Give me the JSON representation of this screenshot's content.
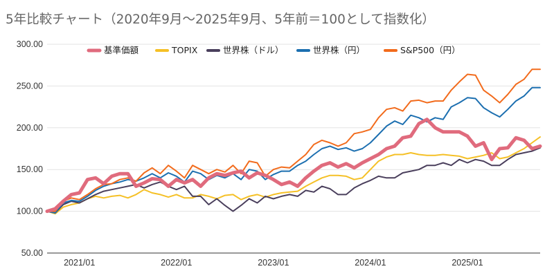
{
  "chart_data": {
    "type": "line",
    "title": "5年比較チャート（2020年9月～2025年9月、5年前＝100として指数化）",
    "xlabel": "",
    "ylabel": "",
    "ylim": [
      50,
      300
    ],
    "y_ticks": [
      "50.00",
      "100.00",
      "150.00",
      "200.00",
      "250.00",
      "300.00"
    ],
    "x_ticks": [
      "2021/01",
      "2022/01",
      "2023/01",
      "2024/01",
      "2025/01"
    ],
    "x_tick_month_index": [
      4,
      16,
      28,
      40,
      52
    ],
    "x_start": "2020/09",
    "x_end": "2025/09",
    "grid": true,
    "legend_position": "top",
    "series": [
      {
        "name": "基準価額",
        "color": "#e06b7d",
        "values": [
          100,
          103,
          112,
          120,
          122,
          138,
          140,
          133,
          142,
          145,
          145,
          130,
          134,
          139,
          138,
          130,
          138,
          134,
          138,
          130,
          140,
          145,
          143,
          146,
          148,
          140,
          146,
          143,
          138,
          132,
          135,
          130,
          140,
          148,
          155,
          158,
          153,
          157,
          152,
          158,
          163,
          168,
          175,
          178,
          188,
          190,
          205,
          210,
          200,
          195,
          195,
          195,
          190,
          178,
          182,
          162,
          175,
          176,
          188,
          185,
          175,
          178
        ]
      },
      {
        "name": "TOPIX",
        "color": "#f5c026",
        "values": [
          100,
          97,
          105,
          108,
          110,
          115,
          118,
          116,
          118,
          119,
          116,
          120,
          126,
          122,
          120,
          117,
          120,
          116,
          116,
          120,
          118,
          115,
          119,
          120,
          114,
          118,
          120,
          117,
          120,
          122,
          123,
          124,
          130,
          135,
          140,
          143,
          143,
          142,
          138,
          140,
          150,
          160,
          165,
          168,
          168,
          170,
          168,
          167,
          167,
          168,
          167,
          166,
          163,
          165,
          167,
          170,
          163,
          165,
          170,
          175,
          182,
          189
        ]
      },
      {
        "name": "世界株（ドル）",
        "color": "#4a3f5c",
        "values": [
          100,
          98,
          108,
          112,
          110,
          115,
          120,
          124,
          126,
          128,
          130,
          132,
          128,
          132,
          135,
          130,
          126,
          130,
          118,
          118,
          108,
          115,
          107,
          100,
          107,
          115,
          110,
          118,
          115,
          118,
          120,
          118,
          125,
          123,
          130,
          127,
          120,
          120,
          128,
          133,
          137,
          142,
          140,
          140,
          146,
          148,
          150,
          155,
          155,
          158,
          155,
          162,
          158,
          162,
          160,
          155,
          155,
          162,
          168,
          170,
          172,
          176
        ]
      },
      {
        "name": "世界株（円）",
        "color": "#1c6fb0",
        "values": [
          100,
          98,
          110,
          113,
          112,
          118,
          125,
          130,
          133,
          135,
          138,
          136,
          140,
          145,
          140,
          146,
          142,
          135,
          148,
          145,
          138,
          143,
          140,
          145,
          138,
          150,
          148,
          138,
          144,
          148,
          148,
          155,
          160,
          168,
          175,
          178,
          174,
          176,
          172,
          175,
          182,
          192,
          202,
          208,
          204,
          215,
          212,
          207,
          212,
          210,
          225,
          230,
          236,
          235,
          224,
          218,
          213,
          222,
          232,
          238,
          248,
          248
        ]
      },
      {
        "name": "S&P500（円）",
        "color": "#f26b1c",
        "values": [
          100,
          100,
          112,
          116,
          114,
          120,
          127,
          132,
          133,
          138,
          140,
          136,
          146,
          152,
          145,
          155,
          148,
          140,
          155,
          150,
          145,
          150,
          147,
          155,
          145,
          160,
          158,
          142,
          150,
          153,
          152,
          160,
          168,
          180,
          185,
          182,
          178,
          182,
          193,
          195,
          198,
          212,
          222,
          224,
          220,
          232,
          233,
          230,
          232,
          232,
          245,
          255,
          264,
          263,
          245,
          238,
          230,
          240,
          252,
          258,
          270,
          270
        ]
      }
    ]
  }
}
